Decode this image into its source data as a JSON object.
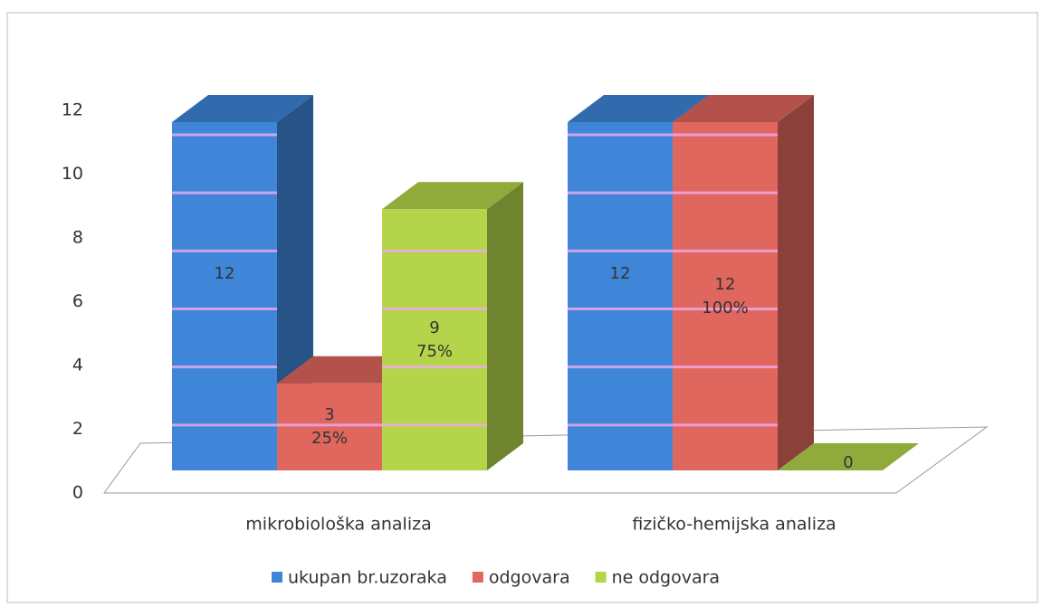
{
  "chart_data": {
    "type": "bar3d",
    "categories": [
      "mikrobiološka analiza",
      "fizičko-hemijska analiza"
    ],
    "series": [
      {
        "name": "ukupan br.uzoraka",
        "color": "#3f86d8",
        "values": [
          12,
          12
        ],
        "value_labels": [
          "12",
          "12"
        ]
      },
      {
        "name": "odgovara",
        "color": "#e0675e",
        "values": [
          3,
          12
        ],
        "value_labels": [
          "3\n25%",
          "12\n100%"
        ]
      },
      {
        "name": "ne odgovara",
        "color": "#b4d44a",
        "values": [
          9,
          0
        ],
        "value_labels": [
          "9\n75%",
          "0"
        ]
      }
    ],
    "ylim": [
      0,
      12
    ],
    "yticks": [
      0,
      2,
      4,
      6,
      8,
      10,
      12
    ],
    "legend": "bottom"
  }
}
